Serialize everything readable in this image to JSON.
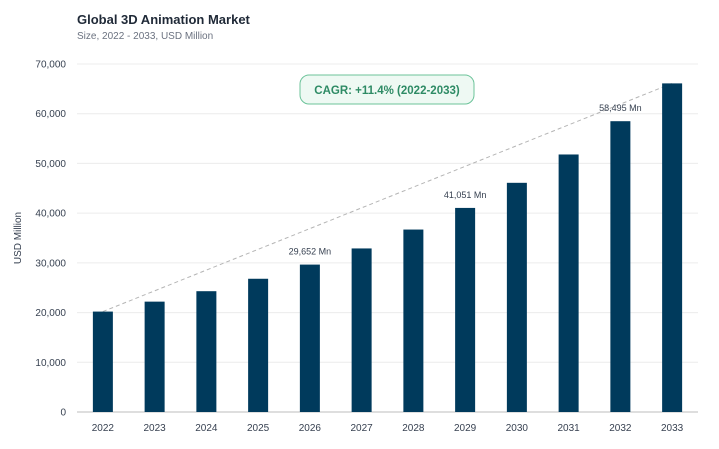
{
  "chart_data": {
    "type": "bar",
    "title": "Global 3D Animation Market",
    "subtitle": "Size, 2022 - 2033, USD Million",
    "ylabel": "USD Million",
    "xlabel": "",
    "ylim": [
      0,
      70000
    ],
    "yticks": [
      "0",
      "10,000",
      "20,000",
      "30,000",
      "40,000",
      "50,000",
      "60,000",
      "70,000"
    ],
    "categories": [
      "2022",
      "2023",
      "2024",
      "2025",
      "2026",
      "2027",
      "2028",
      "2029",
      "2030",
      "2031",
      "2032",
      "2033"
    ],
    "values": [
      20200,
      22200,
      24300,
      26800,
      29652,
      32900,
      36700,
      41051,
      46100,
      51800,
      58495,
      66100
    ],
    "data_labels": [
      {
        "index": 4,
        "text": "29,652 Mn"
      },
      {
        "index": 7,
        "text": "41,051 Mn"
      },
      {
        "index": 10,
        "text": "58,495 Mn"
      }
    ],
    "annotation": "CAGR: +11.4% (2022-2033)",
    "bar_color": "#003a5c",
    "grid": true,
    "trend_line": "dashed"
  }
}
